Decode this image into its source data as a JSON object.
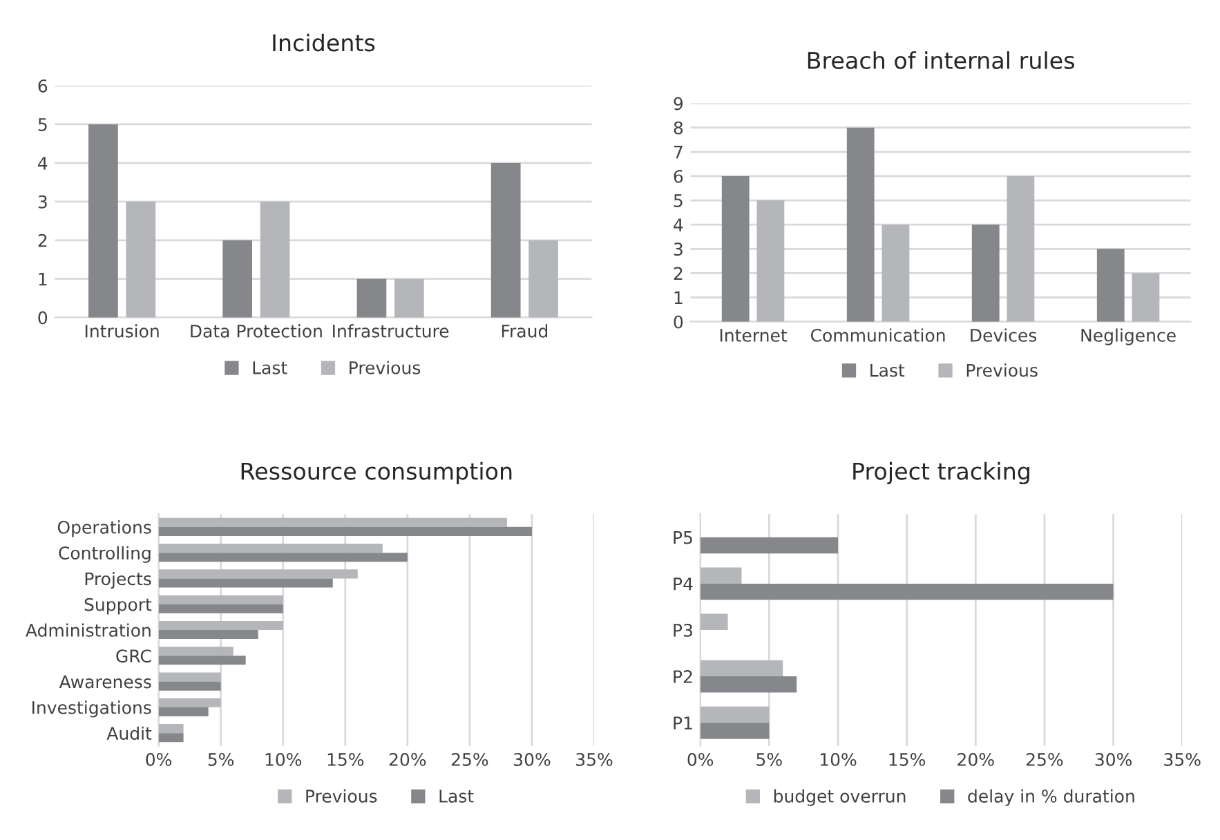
{
  "chart_data": [
    {
      "type": "bar",
      "title": "Incidents",
      "categories": [
        "Intrusion",
        "Data Protection",
        "Infrastructure",
        "Fraud"
      ],
      "series": [
        {
          "name": "Last",
          "color": "#86878b",
          "values": [
            5,
            2,
            1,
            4
          ]
        },
        {
          "name": "Previous",
          "color": "#b5b6ba",
          "values": [
            3,
            3,
            1,
            2
          ]
        }
      ],
      "ylim": [
        0,
        6
      ],
      "yticks": [
        0,
        1,
        2,
        3,
        4,
        5,
        6
      ],
      "grid": "y",
      "legend": "bottom"
    },
    {
      "type": "bar",
      "title": "Breach of internal rules",
      "categories": [
        "Internet",
        "Communication",
        "Devices",
        "Negligence"
      ],
      "series": [
        {
          "name": "Last",
          "color": "#86878b",
          "values": [
            6,
            8,
            4,
            3
          ]
        },
        {
          "name": "Previous",
          "color": "#b5b6ba",
          "values": [
            5,
            4,
            6,
            2
          ]
        }
      ],
      "ylim": [
        0,
        9
      ],
      "yticks": [
        0,
        1,
        2,
        3,
        4,
        5,
        6,
        7,
        8,
        9
      ],
      "grid": "y",
      "legend": "bottom"
    },
    {
      "type": "bar",
      "orientation": "horizontal",
      "title": "Ressource consumption",
      "categories": [
        "Operations",
        "Controlling",
        "Projects",
        "Support",
        "Administration",
        "GRC",
        "Awareness",
        "Investigations",
        "Audit"
      ],
      "series": [
        {
          "name": "Previous",
          "color": "#b5b6ba",
          "values": [
            28,
            18,
            16,
            10,
            10,
            6,
            5,
            5,
            2
          ]
        },
        {
          "name": "Last",
          "color": "#86878b",
          "values": [
            30,
            20,
            14,
            10,
            8,
            7,
            5,
            4,
            2
          ]
        }
      ],
      "xlim": [
        0,
        35
      ],
      "xticks": [
        {
          "value": 0,
          "label": "0%"
        },
        {
          "value": 5,
          "label": "5%"
        },
        {
          "value": 10,
          "label": "10%"
        },
        {
          "value": 15,
          "label": "15%"
        },
        {
          "value": 20,
          "label": "20%"
        },
        {
          "value": 25,
          "label": "25%"
        },
        {
          "value": 30,
          "label": "30%"
        },
        {
          "value": 35,
          "label": "35%"
        }
      ],
      "grid": "x",
      "legend": "bottom"
    },
    {
      "type": "bar",
      "orientation": "horizontal",
      "title": "Project tracking",
      "categories": [
        "P5",
        "P4",
        "P3",
        "P2",
        "P1"
      ],
      "series": [
        {
          "name": "budget overrun",
          "color": "#b5b6ba",
          "values": [
            0,
            3,
            2,
            6,
            5
          ]
        },
        {
          "name": "delay in % duration",
          "color": "#86878b",
          "values": [
            10,
            30,
            0,
            7,
            5
          ]
        }
      ],
      "xlim": [
        0,
        35
      ],
      "xticks": [
        {
          "value": 0,
          "label": "0%"
        },
        {
          "value": 5,
          "label": "5%"
        },
        {
          "value": 10,
          "label": "10%"
        },
        {
          "value": 15,
          "label": "15%"
        },
        {
          "value": 20,
          "label": "20%"
        },
        {
          "value": 25,
          "label": "25%"
        },
        {
          "value": 30,
          "label": "30%"
        },
        {
          "value": 35,
          "label": "35%"
        }
      ],
      "grid": "x",
      "legend": "bottom"
    }
  ]
}
